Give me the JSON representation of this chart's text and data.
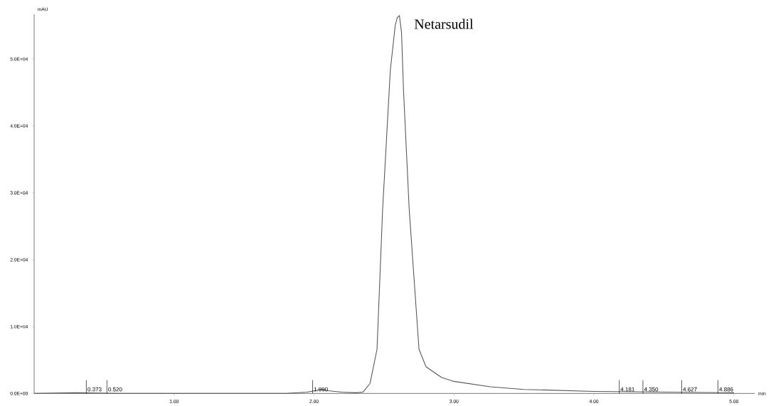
{
  "chart_data": {
    "type": "line",
    "xlabel": "min",
    "ylabel": "mAU",
    "xlim": [
      0,
      5.15
    ],
    "ylim": [
      0,
      56700
    ],
    "xticks": [
      {
        "value": 1,
        "label": "1.00"
      },
      {
        "value": 2,
        "label": "2.00"
      },
      {
        "value": 3,
        "label": "3.00"
      },
      {
        "value": 4,
        "label": "4.00"
      },
      {
        "value": 5,
        "label": "5.00"
      }
    ],
    "yticks": [
      {
        "value": 0,
        "label": "0.0E+00"
      },
      {
        "value": 10000,
        "label": "1.0E+04"
      },
      {
        "value": 20000,
        "label": "2.0E+04"
      },
      {
        "value": 30000,
        "label": "3.0E+04"
      },
      {
        "value": 40000,
        "label": "4.0E+04"
      },
      {
        "value": 50000,
        "label": "5.0E+04"
      }
    ],
    "series": [
      {
        "color": "#555555",
        "x": [
          0,
          0.3,
          0.6,
          1.0,
          1.5,
          1.8,
          1.95,
          2.05,
          2.1,
          2.2,
          2.3,
          2.35,
          2.4,
          2.45,
          2.49,
          2.545,
          2.58,
          2.595,
          2.61,
          2.625,
          2.64,
          2.68,
          2.75,
          2.8,
          2.91,
          3.0,
          3.26,
          3.5,
          4.0,
          4.5,
          5.0
        ],
        "values": [
          0,
          100,
          0,
          0,
          0,
          0,
          200,
          600,
          400,
          200,
          100,
          200,
          1500,
          6600,
          27500,
          48300,
          55000,
          56200,
          56500,
          54000,
          45000,
          27500,
          6600,
          4000,
          2400,
          1800,
          1000,
          600,
          300,
          200,
          100
        ]
      }
    ],
    "annotations": [
      {
        "text": "Netarsudil",
        "x": 2.61,
        "y": 56500
      },
      {
        "text": "0.373",
        "x": 0.373,
        "y": 0
      },
      {
        "text": "0.520",
        "x": 0.52,
        "y": 0
      },
      {
        "text": "1.990",
        "x": 1.99,
        "y": 0
      },
      {
        "text": "4.181",
        "x": 4.181,
        "y": 0
      },
      {
        "text": "4.350",
        "x": 4.35,
        "y": 0
      },
      {
        "text": "4.627",
        "x": 4.627,
        "y": 0
      },
      {
        "text": "4.886",
        "x": 4.886,
        "y": 0
      }
    ]
  }
}
